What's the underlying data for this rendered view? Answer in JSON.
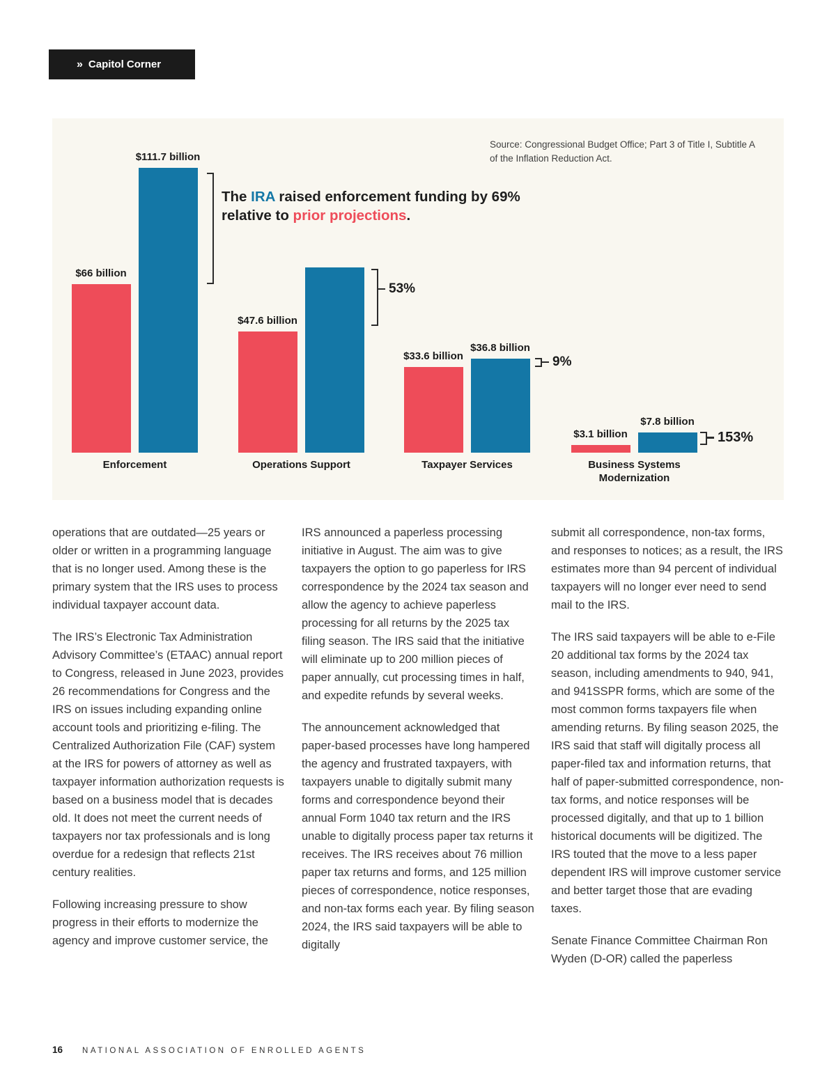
{
  "badge": {
    "chevron": "»",
    "label": "Capitol Corner"
  },
  "chart": {
    "source": "Source: Congressional Budget Office; Part 3 of Title I, Subtitle A of the Inflation Reduction Act.",
    "title": {
      "part1": "The ",
      "ira": "IRA",
      "part2": " raised enforcement funding by 69% relative to ",
      "highlight": "prior projections",
      "part3": "."
    }
  },
  "chart_data": {
    "type": "bar",
    "title": "The IRA raised enforcement funding by 69% relative to prior projections.",
    "source": "Source: Congressional Budget Office; Part 3 of Title I, Subtitle A of the Inflation Reduction Act.",
    "unit": "billions of dollars",
    "categories": [
      "Enforcement",
      "Operations Support",
      "Taxpayer Services",
      "Business Systems Modernization"
    ],
    "series": [
      {
        "name": "Prior projections",
        "color": "#EE4C59",
        "values": [
          66,
          47.6,
          33.6,
          3.1
        ],
        "labels": [
          "$66 billion",
          "$47.6 billion",
          "$33.6 billion",
          "$3.1 billion"
        ]
      },
      {
        "name": "IRA funding",
        "color": "#1477A6",
        "values": [
          111.7,
          72.8,
          36.8,
          7.8
        ],
        "labels": [
          "$111.7 billion",
          null,
          "$36.8 billion",
          "$7.8 billion"
        ]
      }
    ],
    "pct_change_labels": [
      "69%",
      "53%",
      "9%",
      "153%"
    ],
    "ylim": [
      0,
      120
    ],
    "grid": false,
    "legend": "none"
  },
  "article": {
    "columns": [
      {
        "paragraphs": [
          "operations that are outdated—25 years or older or written in a programming language that is no longer used. Among these is the primary system that the IRS uses to process individual taxpayer account data.",
          "The IRS’s Electronic Tax Administration Advisory Committee’s (ETAAC) annual report to Congress, released in June 2023, provides 26 recommendations for Congress and the IRS on issues including expanding online account tools and prioritizing e-filing. The Centralized Authorization File (CAF) system at the IRS for powers of attorney as well as taxpayer information authorization requests is based on a business model that is decades old. It does not meet the current needs of taxpayers nor tax professionals and is long overdue for a redesign that reflects 21st century realities.",
          "Following increasing pressure to show progress in their efforts to modernize the agency and improve customer service, the"
        ]
      },
      {
        "paragraphs": [
          "IRS announced a paperless processing initiative in August. The aim was to give taxpayers the option to go paperless for IRS correspondence by the 2024 tax season and allow the agency to achieve paperless processing for all returns by the 2025 tax filing season. The IRS said that the initiative will eliminate up to 200 million pieces of paper annually, cut processing times in half, and expedite refunds by several weeks.",
          "The announcement acknowledged that paper-based processes have long hampered the agency and frustrated taxpayers, with taxpayers unable to digitally submit many forms and correspondence beyond their annual Form 1040 tax return and the IRS unable to digitally process paper tax returns it receives. The IRS receives about 76 million paper tax returns and forms, and 125 million pieces of correspondence, notice responses, and non-tax forms each year. By filing season 2024, the IRS said taxpayers will be able to digitally"
        ]
      },
      {
        "paragraphs": [
          "submit all correspondence, non-tax forms, and responses to notices; as a result, the IRS estimates more than 94 percent of individual taxpayers will no longer ever need to send mail to the IRS.",
          "The IRS said taxpayers will be able to e-File 20 additional tax forms by the 2024 tax season, including amendments to 940, 941, and 941SSPR forms, which are some of the most common forms taxpayers file when amending returns. By filing season 2025, the IRS said that staff will digitally process all paper-filed tax and information returns, that half of paper-submitted correspondence, non-tax forms, and notice responses will be processed digitally, and that up to 1 billion historical documents will be digitized. The IRS touted that the move to a less paper dependent IRS will improve customer service and better target those that are evading taxes.",
          "Senate Finance Committee Chairman Ron Wyden (D-OR) called the paperless"
        ]
      }
    ]
  },
  "footer": {
    "page_number": "16",
    "organization": "NATIONAL ASSOCIATION OF ENROLLED AGENTS"
  }
}
